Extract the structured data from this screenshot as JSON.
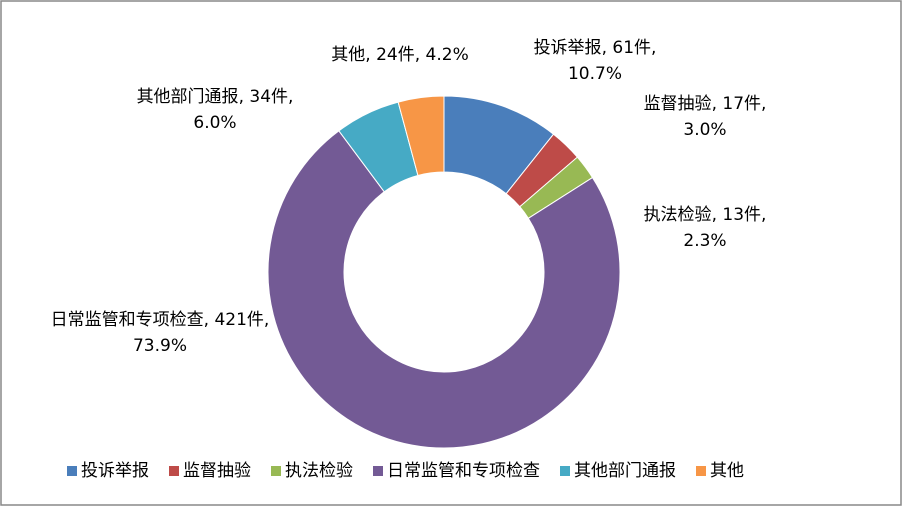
{
  "chart_data": {
    "type": "donut",
    "categories": [
      "投诉举报",
      "监督抽验",
      "执法检验",
      "日常监管和专项检查",
      "其他部门通报",
      "其他"
    ],
    "values": [
      61,
      17,
      13,
      421,
      34,
      24
    ],
    "value_labels": [
      "61件",
      "17件",
      "13件",
      "421件",
      "34件",
      "24件"
    ],
    "percents": [
      10.7,
      3.0,
      2.3,
      73.9,
      6.0,
      4.2
    ],
    "percent_labels": [
      "10.7%",
      "3.0%",
      "2.3%",
      "73.9%",
      "6.0%",
      "4.2%"
    ],
    "label_separator": ", ",
    "colors": [
      "#4a7ebb",
      "#be4b48",
      "#98b954",
      "#735a95",
      "#46aac5",
      "#f79646"
    ],
    "legend": "bottom"
  }
}
